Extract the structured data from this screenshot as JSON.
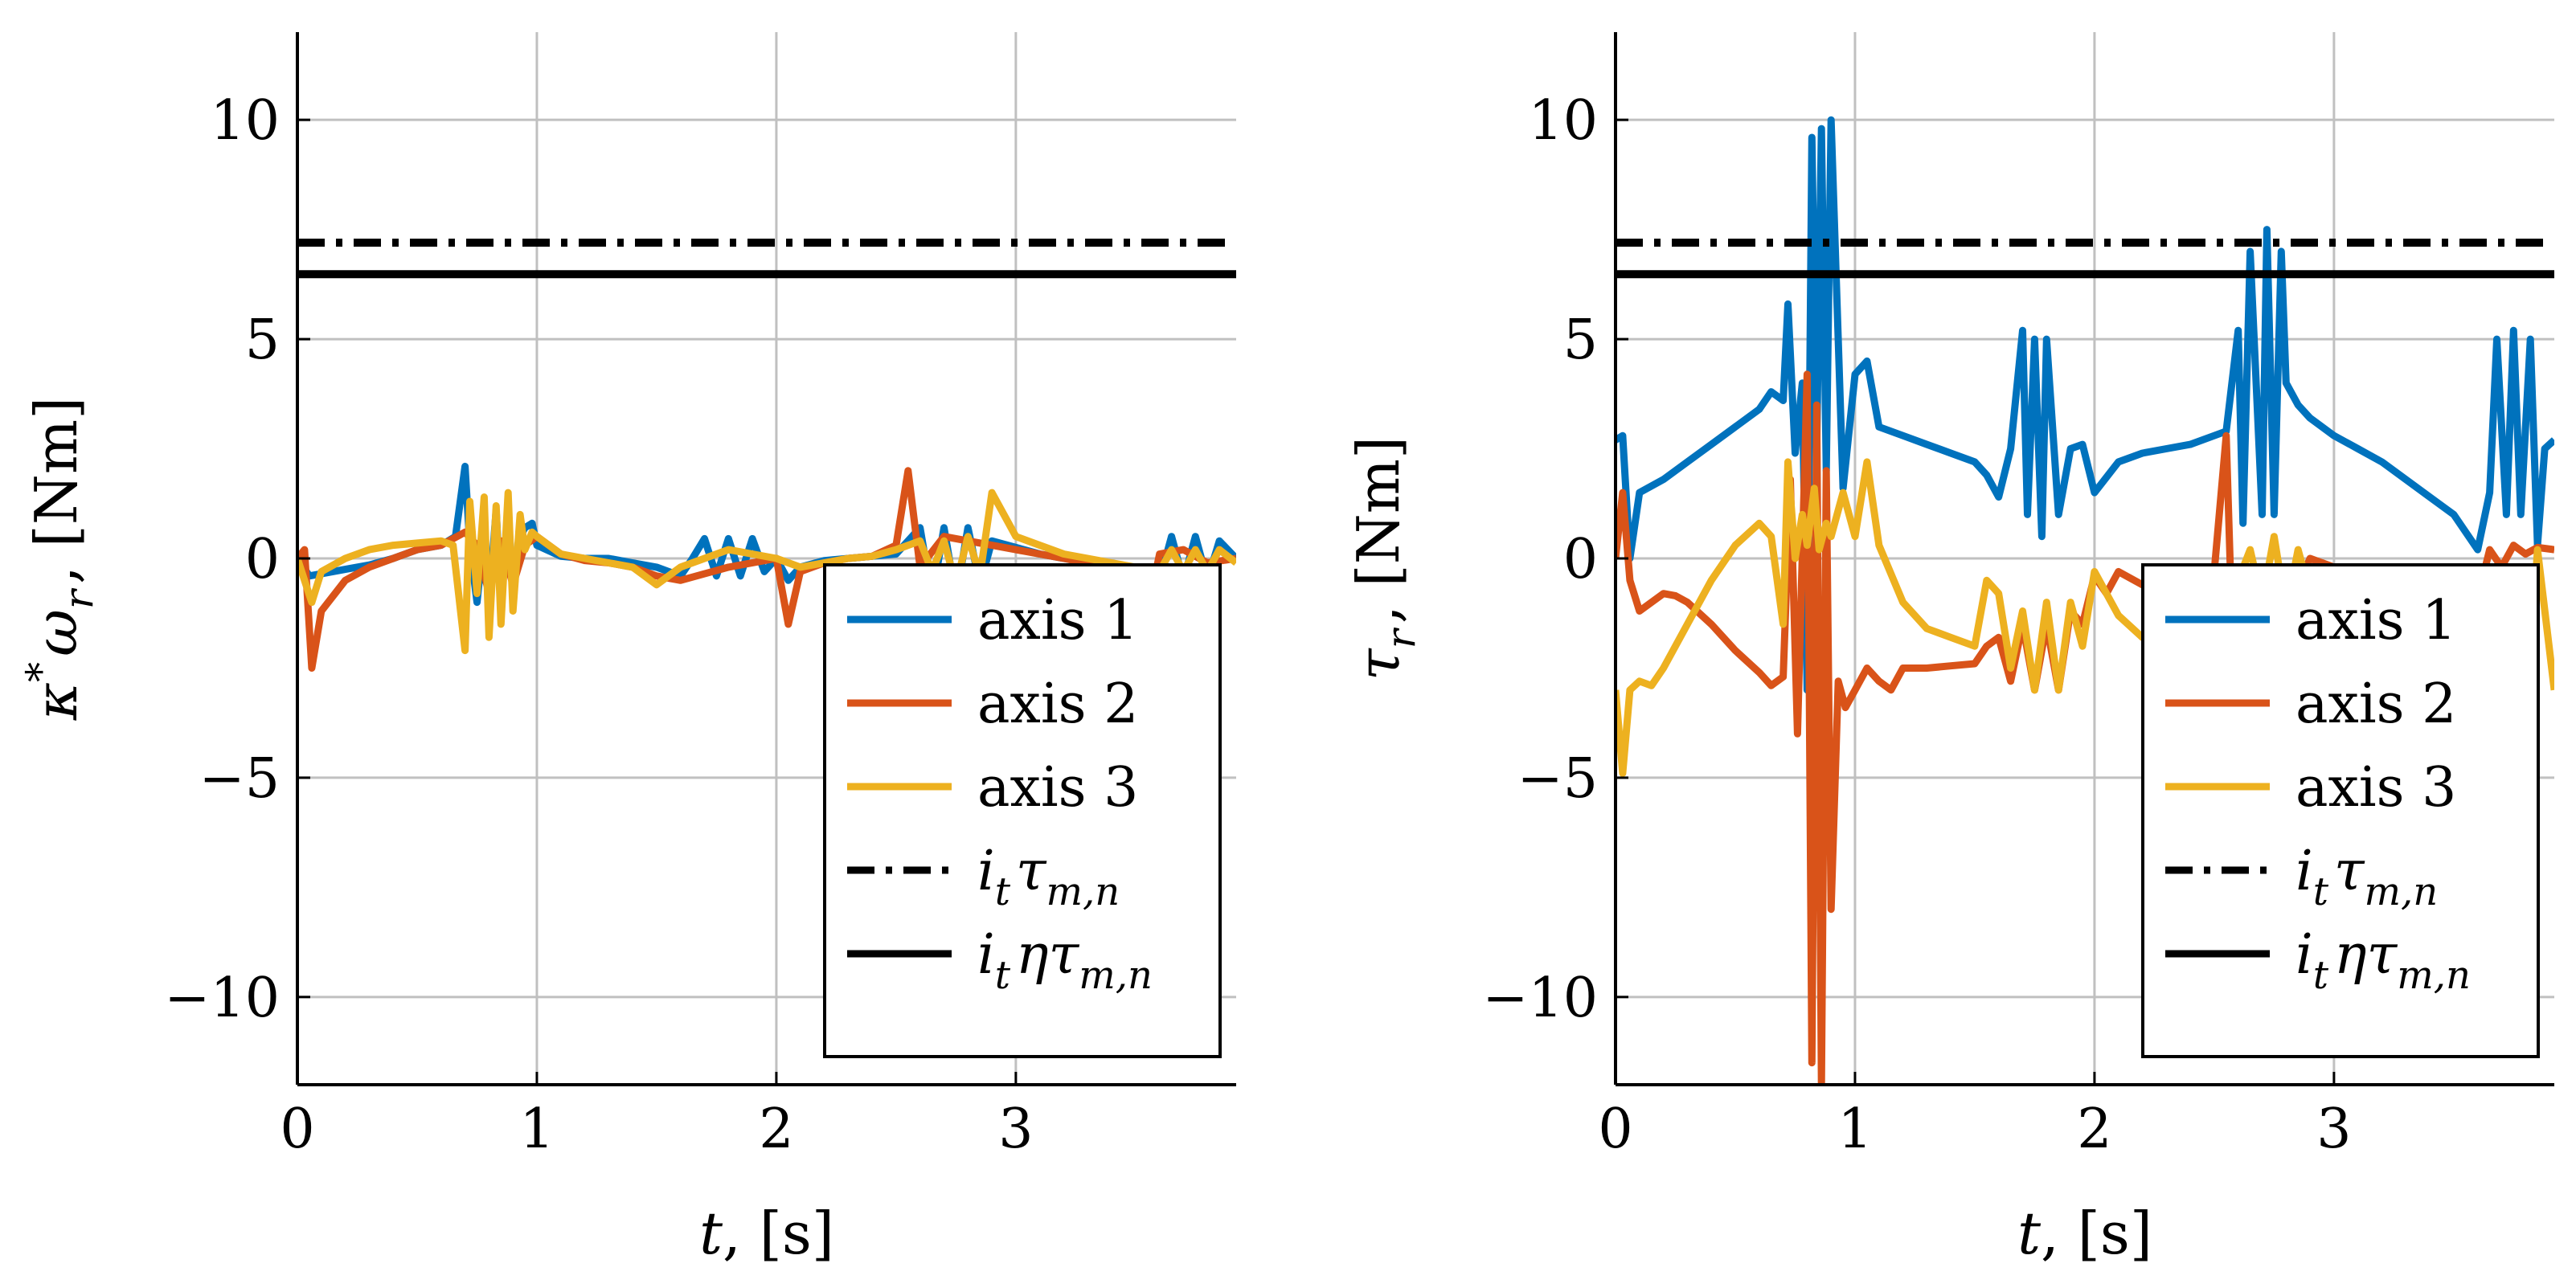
{
  "chart_data": [
    {
      "type": "line",
      "xlabel": "t, [s]",
      "ylabel": "κ*ω_r, [Nm]",
      "xlim": [
        0,
        3.92
      ],
      "ylim": [
        -12,
        12
      ],
      "xticks": [
        0,
        1,
        2,
        3
      ],
      "yticks": [
        -10,
        -5,
        0,
        5,
        10
      ],
      "ytick_labels": [
        "−10",
        "−5",
        "0",
        "5",
        "10"
      ],
      "grid": true,
      "legend_position": "bottom-right",
      "reference_lines": [
        {
          "name": "i_t τ_{m,n}",
          "value": 7.2,
          "style": "dashdot",
          "color": "#000000"
        },
        {
          "name": "i_t η τ_{m,n}",
          "value": 6.48,
          "style": "solid",
          "color": "#000000"
        }
      ],
      "series": [
        {
          "name": "axis 1",
          "color": "#0072BD",
          "x": [
            0,
            0.05,
            0.1,
            0.2,
            0.3,
            0.4,
            0.5,
            0.6,
            0.66,
            0.7,
            0.72,
            0.75,
            0.78,
            0.8,
            0.83,
            0.85,
            0.88,
            0.9,
            0.93,
            0.95,
            0.98,
            1.0,
            1.1,
            1.2,
            1.3,
            1.4,
            1.5,
            1.6,
            1.65,
            1.7,
            1.75,
            1.8,
            1.85,
            1.9,
            1.95,
            2.0,
            2.05,
            2.1,
            2.2,
            2.3,
            2.4,
            2.5,
            2.6,
            2.65,
            2.7,
            2.75,
            2.8,
            2.85,
            2.9,
            3.0,
            3.1,
            3.2,
            3.3,
            3.4,
            3.5,
            3.6,
            3.65,
            3.7,
            3.75,
            3.8,
            3.85,
            3.92
          ],
          "y": [
            0,
            -0.4,
            -0.35,
            -0.25,
            -0.15,
            0,
            0.2,
            0.3,
            0.5,
            2.1,
            0.3,
            -1.0,
            0.6,
            -1.0,
            1.1,
            -1.0,
            1.0,
            -0.6,
            0.5,
            0.7,
            0.8,
            0.3,
            0.05,
            0,
            0,
            -0.1,
            -0.2,
            -0.4,
            0,
            0.45,
            -0.4,
            0.45,
            -0.4,
            0.45,
            -0.3,
            0,
            -0.5,
            -0.2,
            -0.05,
            0,
            0.05,
            0.1,
            0.7,
            -0.9,
            0.7,
            -0.9,
            0.7,
            -0.6,
            0.4,
            0.25,
            0.1,
            0,
            -0.1,
            -0.2,
            -0.3,
            -0.5,
            0.5,
            -0.5,
            0.5,
            -0.5,
            0.4,
            0
          ]
        },
        {
          "name": "axis 2",
          "color": "#D95319",
          "x": [
            0,
            0.03,
            0.06,
            0.1,
            0.2,
            0.3,
            0.4,
            0.5,
            0.6,
            0.7,
            0.75,
            0.8,
            0.85,
            0.9,
            0.95,
            1.0,
            1.1,
            1.2,
            1.3,
            1.4,
            1.5,
            1.6,
            1.8,
            2.0,
            2.05,
            2.1,
            2.2,
            2.3,
            2.4,
            2.5,
            2.55,
            2.6,
            2.7,
            2.8,
            2.9,
            3.0,
            3.2,
            3.4,
            3.5,
            3.55,
            3.6,
            3.7,
            3.8,
            3.92
          ],
          "y": [
            0,
            0.2,
            -2.5,
            -1.2,
            -0.5,
            -0.2,
            0,
            0.2,
            0.3,
            0.6,
            0.3,
            -0.8,
            0.4,
            -0.6,
            0.3,
            0.5,
            0.1,
            -0.05,
            -0.1,
            -0.2,
            -0.4,
            -0.5,
            -0.2,
            0,
            -1.5,
            -0.3,
            -0.1,
            0,
            0.05,
            0.3,
            2.0,
            -0.2,
            0.5,
            0.4,
            0.3,
            0.2,
            0,
            -0.2,
            -0.3,
            -1.2,
            0.1,
            0.2,
            -0.1,
            0
          ]
        },
        {
          "name": "axis 3",
          "color": "#EDB120",
          "x": [
            0,
            0.03,
            0.06,
            0.1,
            0.2,
            0.3,
            0.4,
            0.5,
            0.6,
            0.65,
            0.7,
            0.72,
            0.75,
            0.78,
            0.8,
            0.83,
            0.85,
            0.88,
            0.9,
            0.93,
            0.95,
            0.98,
            1.0,
            1.1,
            1.2,
            1.3,
            1.4,
            1.5,
            1.6,
            1.7,
            1.8,
            1.9,
            2.0,
            2.1,
            2.2,
            2.3,
            2.4,
            2.5,
            2.6,
            2.65,
            2.7,
            2.75,
            2.8,
            2.85,
            2.9,
            3.0,
            3.1,
            3.2,
            3.3,
            3.4,
            3.5,
            3.6,
            3.65,
            3.7,
            3.75,
            3.8,
            3.85,
            3.92
          ],
          "y": [
            0,
            -0.5,
            -1.0,
            -0.3,
            0,
            0.2,
            0.3,
            0.35,
            0.4,
            0.3,
            -2.1,
            1.3,
            -0.8,
            1.4,
            -1.8,
            1.2,
            -1.5,
            1.5,
            -1.2,
            1.0,
            0.2,
            0.6,
            0.5,
            0.1,
            0,
            -0.1,
            -0.2,
            -0.6,
            -0.2,
            0,
            0.2,
            0.1,
            0,
            -0.2,
            -0.1,
            0,
            0.05,
            0.2,
            0.4,
            -0.3,
            0.4,
            -0.6,
            0.5,
            -0.4,
            1.5,
            0.5,
            0.3,
            0.1,
            0,
            -0.1,
            -0.2,
            -0.3,
            0.2,
            -0.3,
            0.2,
            -0.3,
            0.2,
            -0.1
          ]
        }
      ]
    },
    {
      "type": "line",
      "xlabel": "t, [s]",
      "ylabel": "τ_r, [Nm]",
      "xlim": [
        0,
        3.92
      ],
      "ylim": [
        -12,
        12
      ],
      "xticks": [
        0,
        1,
        2,
        3
      ],
      "yticks": [
        -10,
        -5,
        0,
        5,
        10
      ],
      "ytick_labels": [
        "−10",
        "−5",
        "0",
        "5",
        "10"
      ],
      "grid": true,
      "legend_position": "bottom-right",
      "reference_lines": [
        {
          "name": "i_t τ_{m,n}",
          "value": 7.2,
          "style": "dashdot",
          "color": "#000000"
        },
        {
          "name": "i_t η τ_{m,n}",
          "value": 6.48,
          "style": "solid",
          "color": "#000000"
        }
      ],
      "series": [
        {
          "name": "axis 1",
          "color": "#0072BD",
          "x": [
            0,
            0.03,
            0.06,
            0.1,
            0.2,
            0.3,
            0.4,
            0.5,
            0.6,
            0.65,
            0.7,
            0.72,
            0.75,
            0.78,
            0.8,
            0.82,
            0.84,
            0.86,
            0.88,
            0.9,
            0.95,
            1.0,
            1.05,
            1.1,
            1.2,
            1.3,
            1.4,
            1.5,
            1.55,
            1.6,
            1.65,
            1.7,
            1.72,
            1.75,
            1.78,
            1.8,
            1.85,
            1.9,
            1.95,
            2.0,
            2.1,
            2.2,
            2.3,
            2.4,
            2.5,
            2.55,
            2.6,
            2.62,
            2.65,
            2.7,
            2.72,
            2.75,
            2.78,
            2.8,
            2.85,
            2.9,
            3.0,
            3.1,
            3.2,
            3.3,
            3.4,
            3.5,
            3.6,
            3.65,
            3.68,
            3.72,
            3.75,
            3.78,
            3.82,
            3.85,
            3.88,
            3.92
          ],
          "y": [
            2.7,
            2.8,
            0,
            1.5,
            1.8,
            2.2,
            2.6,
            3.0,
            3.4,
            3.8,
            3.6,
            5.8,
            2.4,
            4.0,
            -3.0,
            9.6,
            2.5,
            9.8,
            2.0,
            10.0,
            1.6,
            4.2,
            4.5,
            3.0,
            2.8,
            2.6,
            2.4,
            2.2,
            1.9,
            1.4,
            2.5,
            5.2,
            1.0,
            5.0,
            0.5,
            5.0,
            1.0,
            2.5,
            2.6,
            1.5,
            2.2,
            2.4,
            2.5,
            2.6,
            2.8,
            2.9,
            5.2,
            0.8,
            7.0,
            1.0,
            7.5,
            1.0,
            7.0,
            4.0,
            3.5,
            3.2,
            2.8,
            2.5,
            2.2,
            1.8,
            1.4,
            1.0,
            0.2,
            1.5,
            5.0,
            1.0,
            5.2,
            1.0,
            5.0,
            0.3,
            2.5,
            2.7
          ]
        },
        {
          "name": "axis 2",
          "color": "#D95319",
          "x": [
            0,
            0.03,
            0.06,
            0.1,
            0.15,
            0.2,
            0.25,
            0.3,
            0.4,
            0.5,
            0.6,
            0.65,
            0.7,
            0.73,
            0.76,
            0.8,
            0.82,
            0.84,
            0.86,
            0.88,
            0.9,
            0.93,
            0.96,
            1.0,
            1.05,
            1.1,
            1.15,
            1.2,
            1.3,
            1.4,
            1.5,
            1.55,
            1.6,
            1.65,
            1.7,
            1.75,
            1.8,
            1.85,
            1.9,
            1.95,
            2.0,
            2.05,
            2.1,
            2.2,
            2.3,
            2.4,
            2.5,
            2.55,
            2.58,
            2.62,
            2.65,
            2.7,
            2.75,
            2.8,
            2.85,
            2.9,
            3.0,
            3.1,
            3.2,
            3.3,
            3.4,
            3.5,
            3.6,
            3.65,
            3.7,
            3.75,
            3.8,
            3.85,
            3.92
          ],
          "y": [
            0,
            1.5,
            -0.5,
            -1.2,
            -1.0,
            -0.8,
            -0.85,
            -1.0,
            -1.5,
            -2.1,
            -2.6,
            -2.9,
            -2.7,
            1.8,
            -4.0,
            4.2,
            -11.5,
            3.5,
            -12.0,
            2.0,
            -8.0,
            -2.8,
            -3.4,
            -3.0,
            -2.5,
            -2.8,
            -3.0,
            -2.5,
            -2.5,
            -2.45,
            -2.4,
            -2.0,
            -1.8,
            -2.8,
            -1.5,
            -3.0,
            -1.5,
            -3.0,
            -1.2,
            -1.5,
            -0.4,
            -0.8,
            -0.3,
            -0.6,
            -0.5,
            -0.3,
            -0.3,
            2.8,
            -2.5,
            -0.4,
            -1.0,
            -0.2,
            -1.5,
            -0.3,
            -0.6,
            0,
            -0.2,
            -0.3,
            -0.4,
            -0.5,
            -0.7,
            -0.8,
            -0.9,
            0.2,
            -0.2,
            0.3,
            0.1,
            0.25,
            0.2
          ]
        },
        {
          "name": "axis 3",
          "color": "#EDB120",
          "x": [
            0,
            0.03,
            0.06,
            0.1,
            0.15,
            0.2,
            0.3,
            0.4,
            0.5,
            0.6,
            0.65,
            0.7,
            0.72,
            0.75,
            0.78,
            0.8,
            0.83,
            0.85,
            0.88,
            0.9,
            0.95,
            1.0,
            1.05,
            1.1,
            1.2,
            1.3,
            1.4,
            1.5,
            1.55,
            1.6,
            1.65,
            1.7,
            1.75,
            1.8,
            1.85,
            1.9,
            1.95,
            2.0,
            2.1,
            2.2,
            2.3,
            2.4,
            2.5,
            2.55,
            2.6,
            2.65,
            2.7,
            2.75,
            2.8,
            2.85,
            2.9,
            3.0,
            3.1,
            3.2,
            3.3,
            3.4,
            3.5,
            3.55,
            3.6,
            3.7,
            3.8,
            3.85,
            3.92
          ],
          "y": [
            -3.0,
            -4.9,
            -3.0,
            -2.8,
            -2.9,
            -2.5,
            -1.5,
            -0.5,
            0.3,
            0.8,
            0.5,
            -1.5,
            2.2,
            0,
            1.0,
            0.3,
            1.6,
            0.2,
            0.8,
            0.5,
            1.5,
            0.5,
            2.2,
            0.3,
            -1.0,
            -1.6,
            -1.8,
            -2.0,
            -0.5,
            -0.8,
            -2.5,
            -1.2,
            -3.0,
            -1.0,
            -3.0,
            -1.0,
            -2.0,
            -0.3,
            -1.3,
            -1.8,
            -1.8,
            -1.5,
            -1.2,
            -1.5,
            -0.5,
            0.2,
            -1.0,
            0.5,
            -1.2,
            0.2,
            -0.8,
            -1.0,
            -1.5,
            -2.0,
            -2.5,
            -3.0,
            -3.2,
            -3.5,
            -3.3,
            -3.5,
            -4.0,
            0.2,
            -3.0
          ]
        }
      ]
    }
  ]
}
